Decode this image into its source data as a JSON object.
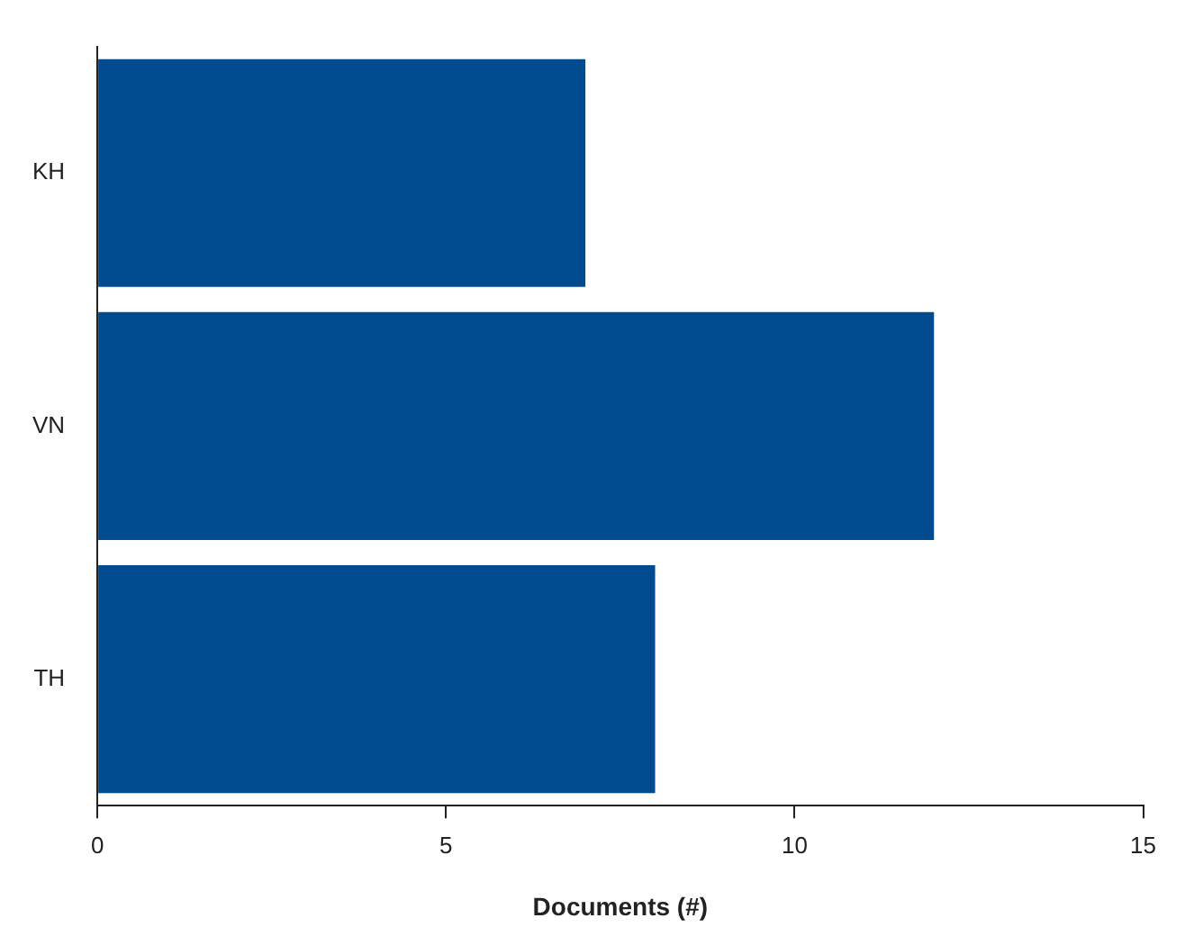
{
  "chart_data": {
    "type": "bar",
    "orientation": "horizontal",
    "xlabel": "Documents (#)",
    "categories": [
      "KH",
      "VN",
      "TH"
    ],
    "values": [
      7,
      12,
      8
    ],
    "color": "#004a8f",
    "xlim": [
      0,
      15
    ],
    "xticks": [
      0,
      5,
      10,
      15
    ],
    "grid": false,
    "legend": false
  }
}
